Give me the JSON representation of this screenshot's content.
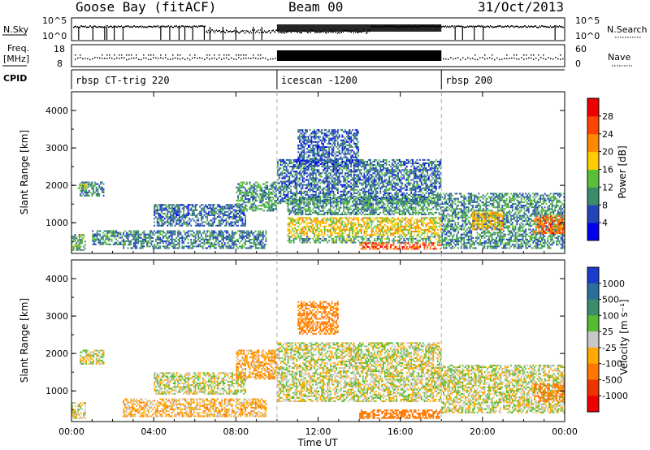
{
  "header": {
    "station": "Goose Bay (fitACF)",
    "beam": "Beam 00",
    "date": "31/Oct/2013"
  },
  "top_panels": {
    "nsky_label": "N.Sky",
    "nsky_ticks": [
      "10^5",
      "10^0"
    ],
    "nsky_right_ticks": [
      "10^5",
      "10^0"
    ],
    "nsearch_label": "N.Search",
    "freq_label_line1": "Freq.",
    "freq_label_line2": "[MHz]",
    "freq_ticks": [
      "18",
      "8"
    ],
    "nave_ticks": [
      "60",
      "0"
    ],
    "nave_label": "Nave",
    "cpid_label": "CPID",
    "modes": [
      {
        "name": "rbsp CT-trig 220",
        "start_hour": 0
      },
      {
        "name": "icescan -1200",
        "start_hour": 10
      },
      {
        "name": "rbsp 200",
        "start_hour": 18
      }
    ]
  },
  "power_colorbar": {
    "label": "Power [dB]",
    "ticks": [
      "4",
      "8",
      "12",
      "16",
      "20",
      "24",
      "28"
    ],
    "colors": [
      "#0000ee",
      "#2244bb",
      "#3c8c6c",
      "#5abf3a",
      "#ffcc00",
      "#ff8800",
      "#ff4400",
      "#ee0000"
    ]
  },
  "velocity_colorbar": {
    "label": "Velocity [m s⁻¹]",
    "ticks": [
      "1000",
      "500",
      "100",
      "25",
      "-25",
      "-100",
      "-500",
      "-1000"
    ],
    "colors": [
      "#1a3ccc",
      "#2a6e9a",
      "#3c8c6c",
      "#55bb33",
      "#c8c8c8",
      "#ffaa00",
      "#ff7700",
      "#ee3300",
      "#ee0000"
    ]
  },
  "chart_data": [
    {
      "type": "heatmap",
      "title": "",
      "xlabel": "Time UT",
      "ylabel": "Slant Range [km]",
      "xlim": [
        0,
        24
      ],
      "ylim": [
        180,
        4500
      ],
      "x_ticks": [
        "00:00",
        "04:00",
        "08:00",
        "12:00",
        "16:00",
        "20:00",
        "00:00"
      ],
      "y_ticks": [
        "1000",
        "2000",
        "3000",
        "4000"
      ],
      "y_tick_values": [
        1000,
        2000,
        3000,
        4000
      ],
      "quantity": "Power [dB]",
      "color_range": [
        0,
        30
      ],
      "regions": [
        {
          "t": [
            0,
            0.7
          ],
          "r": [
            250,
            700
          ],
          "value": 12
        },
        {
          "t": [
            0.4,
            1.6
          ],
          "r": [
            1700,
            2100
          ],
          "value": 9
        },
        {
          "t": [
            0.3,
            1.0
          ],
          "r": [
            1900,
            2050
          ],
          "value": 14
        },
        {
          "t": [
            1.0,
            2.5
          ],
          "r": [
            400,
            800
          ],
          "value": 10
        },
        {
          "t": [
            2.5,
            9.5
          ],
          "r": [
            300,
            800
          ],
          "value": 9
        },
        {
          "t": [
            4.0,
            8.5
          ],
          "r": [
            900,
            1500
          ],
          "value": 8
        },
        {
          "t": [
            8.0,
            10.0
          ],
          "r": [
            1300,
            2100
          ],
          "value": 11
        },
        {
          "t": [
            10.0,
            18.0
          ],
          "r": [
            1500,
            2700
          ],
          "value": 8
        },
        {
          "t": [
            10.5,
            18.0
          ],
          "r": [
            1200,
            1700
          ],
          "value": 11
        },
        {
          "t": [
            10.5,
            18.0
          ],
          "r": [
            650,
            1150
          ],
          "value": 18
        },
        {
          "t": [
            10.5,
            18.0
          ],
          "r": [
            450,
            650
          ],
          "value": 12
        },
        {
          "t": [
            14.0,
            18.0
          ],
          "r": [
            280,
            480
          ],
          "value": 26
        },
        {
          "t": [
            11.0,
            14.0
          ],
          "r": [
            2500,
            3500
          ],
          "value": 7
        },
        {
          "t": [
            18.0,
            24.0
          ],
          "r": [
            300,
            1800
          ],
          "value": 10
        },
        {
          "t": [
            19.5,
            21.0
          ],
          "r": [
            800,
            1300
          ],
          "value": 20
        },
        {
          "t": [
            22.5,
            24.0
          ],
          "r": [
            700,
            1200
          ],
          "value": 24
        }
      ]
    },
    {
      "type": "heatmap",
      "title": "",
      "xlabel": "Time UT",
      "ylabel": "Slant Range [km]",
      "xlim": [
        0,
        24
      ],
      "ylim": [
        180,
        4500
      ],
      "x_ticks": [
        "00:00",
        "04:00",
        "08:00",
        "12:00",
        "16:00",
        "20:00",
        "00:00"
      ],
      "y_ticks": [
        "1000",
        "2000",
        "3000",
        "4000"
      ],
      "y_tick_values": [
        1000,
        2000,
        3000,
        4000
      ],
      "quantity": "Velocity [m s⁻¹]",
      "color_levels": [
        1000,
        500,
        100,
        25,
        -25,
        -100,
        -500,
        -1000
      ],
      "regions": [
        {
          "t": [
            0,
            0.7
          ],
          "r": [
            250,
            700
          ],
          "value": 0
        },
        {
          "t": [
            0.4,
            1.6
          ],
          "r": [
            1700,
            2100
          ],
          "value": 0
        },
        {
          "t": [
            2.5,
            9.5
          ],
          "r": [
            300,
            800
          ],
          "value": -60
        },
        {
          "t": [
            4.0,
            8.5
          ],
          "r": [
            900,
            1500
          ],
          "value": 0
        },
        {
          "t": [
            8.0,
            10.0
          ],
          "r": [
            1300,
            2100
          ],
          "value": -80
        },
        {
          "t": [
            10.0,
            18.0
          ],
          "r": [
            700,
            2300
          ],
          "value": 0
        },
        {
          "t": [
            11.0,
            13.0
          ],
          "r": [
            2500,
            3400
          ],
          "value": -150
        },
        {
          "t": [
            14.0,
            18.0
          ],
          "r": [
            250,
            500
          ],
          "value": -200
        },
        {
          "t": [
            18.0,
            24.0
          ],
          "r": [
            400,
            1700
          ],
          "value": 0
        },
        {
          "t": [
            22.5,
            24.0
          ],
          "r": [
            700,
            1200
          ],
          "value": -400
        }
      ]
    }
  ]
}
